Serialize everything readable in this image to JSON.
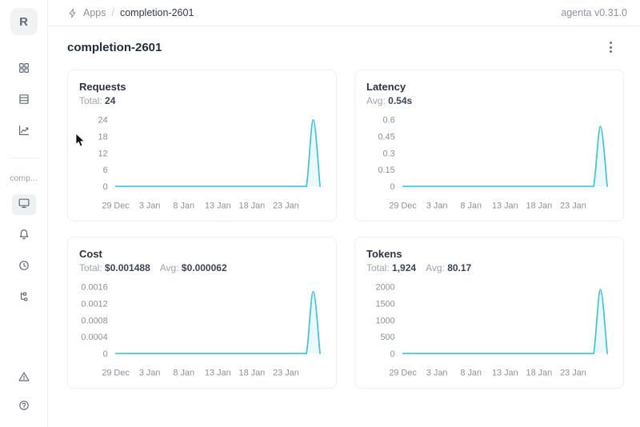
{
  "header": {
    "breadcrumb": {
      "apps": "Apps",
      "separator": "/",
      "current": "completion-2601"
    },
    "version": "agenta v0.31.0"
  },
  "sidebar": {
    "avatar": "R",
    "app_label": "comp...",
    "icons": [
      "apps-grid",
      "test-sets",
      "evaluations-chart",
      "overview-monitor",
      "notifications-bell",
      "history",
      "traces-tree",
      "alert-triangle",
      "help-circle"
    ]
  },
  "page": {
    "title": "completion-2601"
  },
  "accent": {
    "line_color": "#3BC3DE",
    "area_opacity": 0.1
  },
  "chart_data": [
    {
      "type": "line",
      "title": "Requests",
      "stats": [
        {
          "label": "Total:",
          "value": "24"
        }
      ],
      "x_ticks": [
        "29 Dec",
        "3 Jan",
        "8 Jan",
        "13 Jan",
        "18 Jan",
        "23 Jan"
      ],
      "x_tick_every": 5,
      "y_ticks": [
        "0",
        "6",
        "12",
        "18",
        "24"
      ],
      "y_max": 24,
      "points": [
        0,
        0,
        0,
        0,
        0,
        0,
        0,
        0,
        0,
        0,
        0,
        0,
        0,
        0,
        0,
        0,
        0,
        0,
        0,
        0,
        0,
        0,
        0,
        0,
        0,
        0,
        0,
        0,
        0,
        24,
        0
      ]
    },
    {
      "type": "line",
      "title": "Latency",
      "stats": [
        {
          "label": "Avg:",
          "value": "0.54s"
        }
      ],
      "x_ticks": [
        "29 Dec",
        "3 Jan",
        "8 Jan",
        "13 Jan",
        "18 Jan",
        "23 Jan"
      ],
      "x_tick_every": 5,
      "y_ticks": [
        "0",
        "0.15",
        "0.3",
        "0.45",
        "0.6"
      ],
      "y_max": 0.6,
      "points": [
        0,
        0,
        0,
        0,
        0,
        0,
        0,
        0,
        0,
        0,
        0,
        0,
        0,
        0,
        0,
        0,
        0,
        0,
        0,
        0,
        0,
        0,
        0,
        0,
        0,
        0,
        0,
        0,
        0,
        0.54,
        0
      ]
    },
    {
      "type": "line",
      "title": "Cost",
      "stats": [
        {
          "label": "Total:",
          "value": "$0.001488"
        },
        {
          "label": "Avg:",
          "value": "$0.000062"
        }
      ],
      "x_ticks": [
        "29 Dec",
        "3 Jan",
        "8 Jan",
        "13 Jan",
        "18 Jan",
        "23 Jan"
      ],
      "x_tick_every": 5,
      "y_ticks": [
        "0",
        "0.0004",
        "0.0008",
        "0.0012",
        "0.0016"
      ],
      "y_max": 0.0016,
      "points": [
        0,
        0,
        0,
        0,
        0,
        0,
        0,
        0,
        0,
        0,
        0,
        0,
        0,
        0,
        0,
        0,
        0,
        0,
        0,
        0,
        0,
        0,
        0,
        0,
        0,
        0,
        0,
        0,
        0,
        0.001488,
        0
      ]
    },
    {
      "type": "line",
      "title": "Tokens",
      "stats": [
        {
          "label": "Total:",
          "value": "1,924"
        },
        {
          "label": "Avg:",
          "value": "80.17"
        }
      ],
      "x_ticks": [
        "29 Dec",
        "3 Jan",
        "8 Jan",
        "13 Jan",
        "18 Jan",
        "23 Jan"
      ],
      "x_tick_every": 5,
      "y_ticks": [
        "0",
        "500",
        "1000",
        "1500",
        "2000"
      ],
      "y_max": 2000,
      "points": [
        0,
        0,
        0,
        0,
        0,
        0,
        0,
        0,
        0,
        0,
        0,
        0,
        0,
        0,
        0,
        0,
        0,
        0,
        0,
        0,
        0,
        0,
        0,
        0,
        0,
        0,
        0,
        0,
        0,
        1924,
        0
      ]
    }
  ]
}
